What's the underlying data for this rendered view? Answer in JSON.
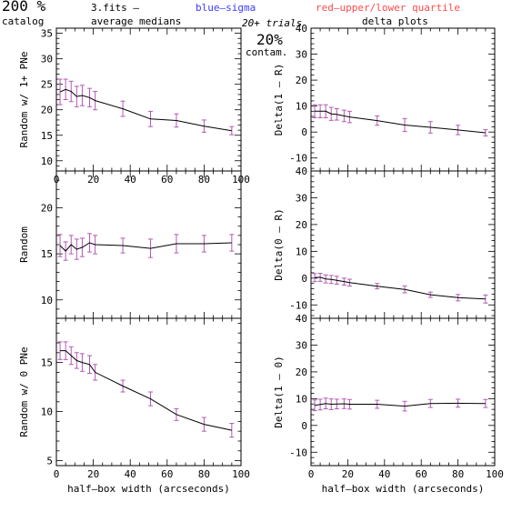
{
  "header": {
    "percent": "200 %",
    "catalog": "catalog",
    "fits": "3.fits  –",
    "medians": "average medians",
    "blue": "blue–sigma",
    "red": "red–upper/lower quartile",
    "trials": "20+ trials",
    "delta": "delta plots",
    "contam_pct": "20%",
    "contam": "contam."
  },
  "colors": {
    "line": "#000000",
    "sigma": "#3a3aff",
    "quartile": "#ff4a4a",
    "errorbar": "#b25ab2"
  },
  "chart_data": [
    {
      "type": "line",
      "id": "left-top",
      "ylabel": "Random w/ 1+ PNe",
      "xlim": [
        0,
        100
      ],
      "ylim": [
        8,
        36
      ],
      "xticks": [
        0,
        20,
        40,
        60,
        80,
        100
      ],
      "yticks": [
        10,
        15,
        20,
        25,
        30,
        35
      ],
      "show_xticklabels": true,
      "xlabel": "",
      "x": [
        2,
        5,
        8,
        11,
        14,
        18,
        21,
        36,
        51,
        65,
        80,
        95
      ],
      "y": [
        23.5,
        24.0,
        23.6,
        22.6,
        22.8,
        22.4,
        21.8,
        20.2,
        18.2,
        17.9,
        16.8,
        15.9
      ],
      "err": [
        2.5,
        2.0,
        2.0,
        2.0,
        2.0,
        1.8,
        1.8,
        1.5,
        1.5,
        1.3,
        1.2,
        0.8
      ]
    },
    {
      "type": "line",
      "id": "left-mid",
      "ylabel": "Random",
      "xlim": [
        0,
        100
      ],
      "ylim": [
        8,
        24
      ],
      "xticks": [
        0,
        20,
        40,
        60,
        80,
        100
      ],
      "yticks": [
        10,
        15,
        20
      ],
      "show_xticklabels": false,
      "xlabel": "",
      "x": [
        2,
        5,
        8,
        11,
        14,
        18,
        21,
        36,
        51,
        65,
        80,
        95
      ],
      "y": [
        15.9,
        15.3,
        16.0,
        15.5,
        15.7,
        16.2,
        16.0,
        15.9,
        15.6,
        16.1,
        16.1,
        16.2
      ],
      "err": [
        1.2,
        1.0,
        1.0,
        1.1,
        1.0,
        1.0,
        1.0,
        0.8,
        1.0,
        1.0,
        0.9,
        0.9
      ]
    },
    {
      "type": "line",
      "id": "left-bot",
      "ylabel": "Random w/ 0 PNe",
      "xlim": [
        0,
        100
      ],
      "ylim": [
        4.5,
        19.5
      ],
      "xticks": [
        0,
        20,
        40,
        60,
        80,
        100
      ],
      "yticks": [
        5,
        10,
        15
      ],
      "show_xticklabels": true,
      "xlabel": "half–box width (arcseconds)",
      "x": [
        2,
        5,
        8,
        11,
        14,
        18,
        21,
        36,
        51,
        65,
        80,
        95
      ],
      "y": [
        16.2,
        16.2,
        15.7,
        15.2,
        15.0,
        14.8,
        14.0,
        12.6,
        11.3,
        9.7,
        8.7,
        8.1
      ],
      "err": [
        0.9,
        0.9,
        0.9,
        0.8,
        0.9,
        0.9,
        0.8,
        0.6,
        0.7,
        0.6,
        0.7,
        0.7
      ]
    },
    {
      "type": "line",
      "id": "right-top",
      "ylabel": "Delta(1 – R)",
      "xlim": [
        0,
        100
      ],
      "ylim": [
        -15,
        40
      ],
      "xticks": [
        0,
        20,
        40,
        60,
        80,
        100
      ],
      "yticks": [
        -10,
        0,
        10,
        20,
        30,
        40
      ],
      "show_xticklabels": false,
      "xlabel": "",
      "x": [
        2,
        5,
        8,
        11,
        14,
        18,
        21,
        36,
        51,
        65,
        80,
        95
      ],
      "y": [
        8.0,
        8.0,
        8.0,
        7.0,
        6.8,
        6.2,
        5.8,
        4.4,
        2.7,
        1.8,
        0.8,
        -0.3
      ],
      "err": [
        2.5,
        2.5,
        2.5,
        2.5,
        2.2,
        2.2,
        2.2,
        1.8,
        2.5,
        2.2,
        1.8,
        1.2
      ]
    },
    {
      "type": "line",
      "id": "right-mid",
      "ylabel": "Delta(0 – R)",
      "xlim": [
        0,
        100
      ],
      "ylim": [
        -15,
        40
      ],
      "xticks": [
        0,
        20,
        40,
        60,
        80,
        100
      ],
      "yticks": [
        -10,
        0,
        10,
        20,
        30,
        40
      ],
      "show_xticklabels": false,
      "xlabel": "",
      "x": [
        2,
        5,
        8,
        11,
        14,
        18,
        21,
        36,
        51,
        65,
        80,
        95
      ],
      "y": [
        0.2,
        0.3,
        -0.3,
        -0.5,
        -0.8,
        -1.3,
        -1.7,
        -3.0,
        -4.2,
        -6.2,
        -7.3,
        -7.8
      ],
      "err": [
        1.5,
        1.5,
        1.5,
        1.5,
        1.5,
        1.3,
        1.3,
        1.0,
        1.3,
        1.0,
        1.2,
        1.5
      ]
    },
    {
      "type": "line",
      "id": "right-bot",
      "ylabel": "Delta(1 – 0)",
      "xlim": [
        0,
        100
      ],
      "ylim": [
        -15,
        40
      ],
      "xticks": [
        0,
        20,
        40,
        60,
        80,
        100
      ],
      "yticks": [
        -10,
        0,
        10,
        20,
        30,
        40
      ],
      "show_xticklabels": true,
      "xlabel": "half–box width (arcseconds)",
      "x": [
        2,
        5,
        8,
        11,
        14,
        18,
        21,
        36,
        51,
        65,
        80,
        95
      ],
      "y": [
        7.5,
        7.8,
        8.2,
        7.9,
        8.0,
        8.1,
        7.9,
        7.9,
        7.2,
        8.2,
        8.3,
        8.2
      ],
      "err": [
        2.0,
        2.0,
        2.0,
        2.0,
        1.8,
        1.8,
        1.8,
        1.5,
        1.8,
        1.5,
        1.5,
        1.5
      ]
    }
  ]
}
